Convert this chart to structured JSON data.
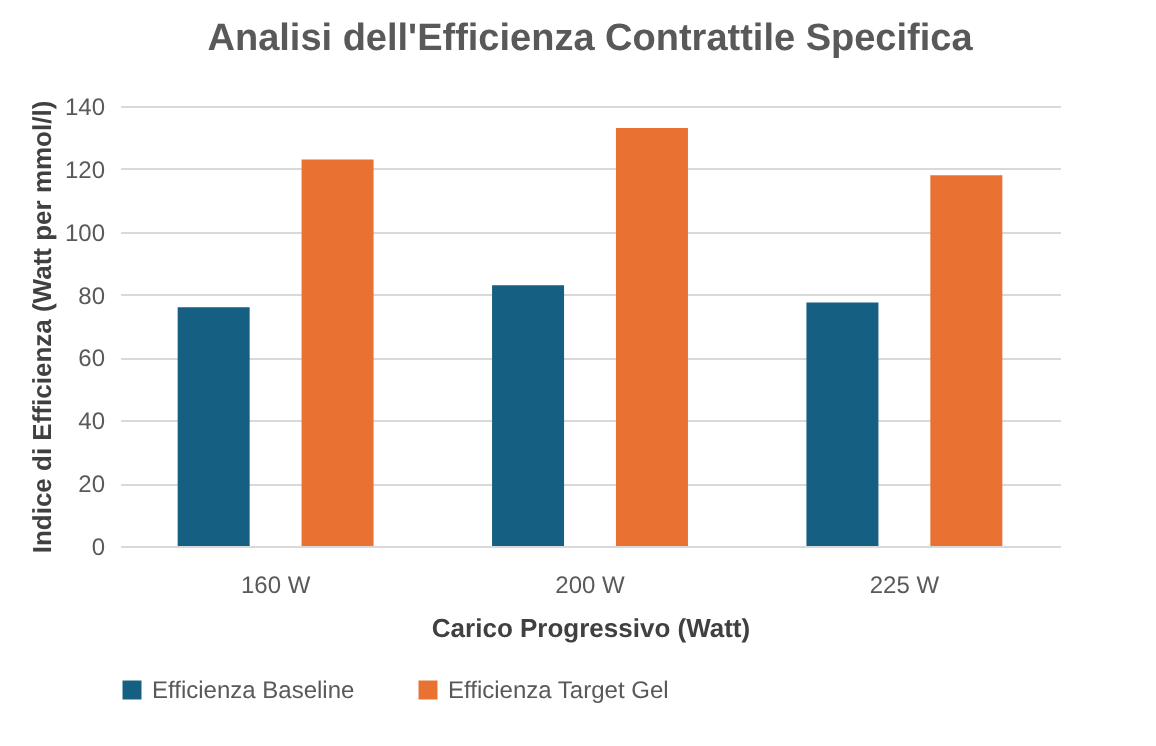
{
  "chart_data": {
    "type": "bar",
    "title": "Analisi dell'Efficienza Contrattile Specifica",
    "xlabel": "Carico Progressivo (Watt)",
    "ylabel": "Indice di Efficienza (Watt per mmol/l)",
    "categories": [
      "160 W",
      "200 W",
      "225 W"
    ],
    "series": [
      {
        "name": "Efficienza Baseline",
        "color": "#155f82",
        "values": [
          76,
          83,
          77.5
        ]
      },
      {
        "name": "Efficienza Target Gel",
        "color": "#e97132",
        "values": [
          123,
          133,
          118
        ]
      }
    ],
    "ylim": [
      0,
      140
    ],
    "yticks": [
      0,
      20,
      40,
      60,
      80,
      100,
      120,
      140
    ],
    "grid": "y",
    "legend": "bottom"
  }
}
